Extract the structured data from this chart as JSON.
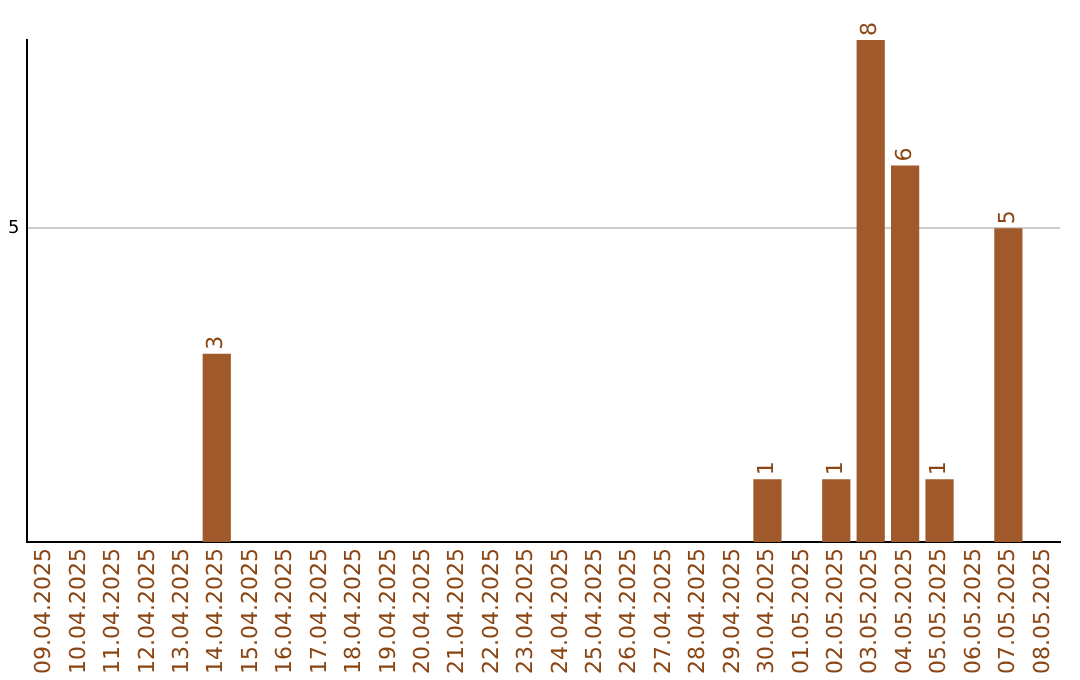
{
  "chart_data": {
    "type": "bar",
    "categories": [
      "09.04.2025",
      "10.04.2025",
      "11.04.2025",
      "12.04.2025",
      "13.04.2025",
      "14.04.2025",
      "15.04.2025",
      "16.04.2025",
      "17.04.2025",
      "18.04.2025",
      "19.04.2025",
      "20.04.2025",
      "21.04.2025",
      "22.04.2025",
      "23.04.2025",
      "24.04.2025",
      "25.04.2025",
      "26.04.2025",
      "27.04.2025",
      "28.04.2025",
      "29.04.2025",
      "30.04.2025",
      "01.05.2025",
      "02.05.2025",
      "03.05.2025",
      "04.05.2025",
      "05.05.2025",
      "06.05.2025",
      "07.05.2025",
      "08.05.2025"
    ],
    "values": [
      0,
      0,
      0,
      0,
      0,
      3,
      0,
      0,
      0,
      0,
      0,
      0,
      0,
      0,
      0,
      0,
      0,
      0,
      0,
      0,
      0,
      1,
      0,
      1,
      8,
      6,
      1,
      0,
      5,
      0
    ],
    "value_labels": [
      null,
      null,
      null,
      null,
      null,
      "3",
      null,
      null,
      null,
      null,
      null,
      null,
      null,
      null,
      null,
      null,
      null,
      null,
      null,
      null,
      null,
      "1",
      null,
      "1",
      "8",
      "6",
      "1",
      null,
      "5",
      null
    ],
    "color": "#a0592a",
    "ylim": [
      0,
      8
    ],
    "yticks": [
      5
    ],
    "grid": "y",
    "legend": false
  }
}
